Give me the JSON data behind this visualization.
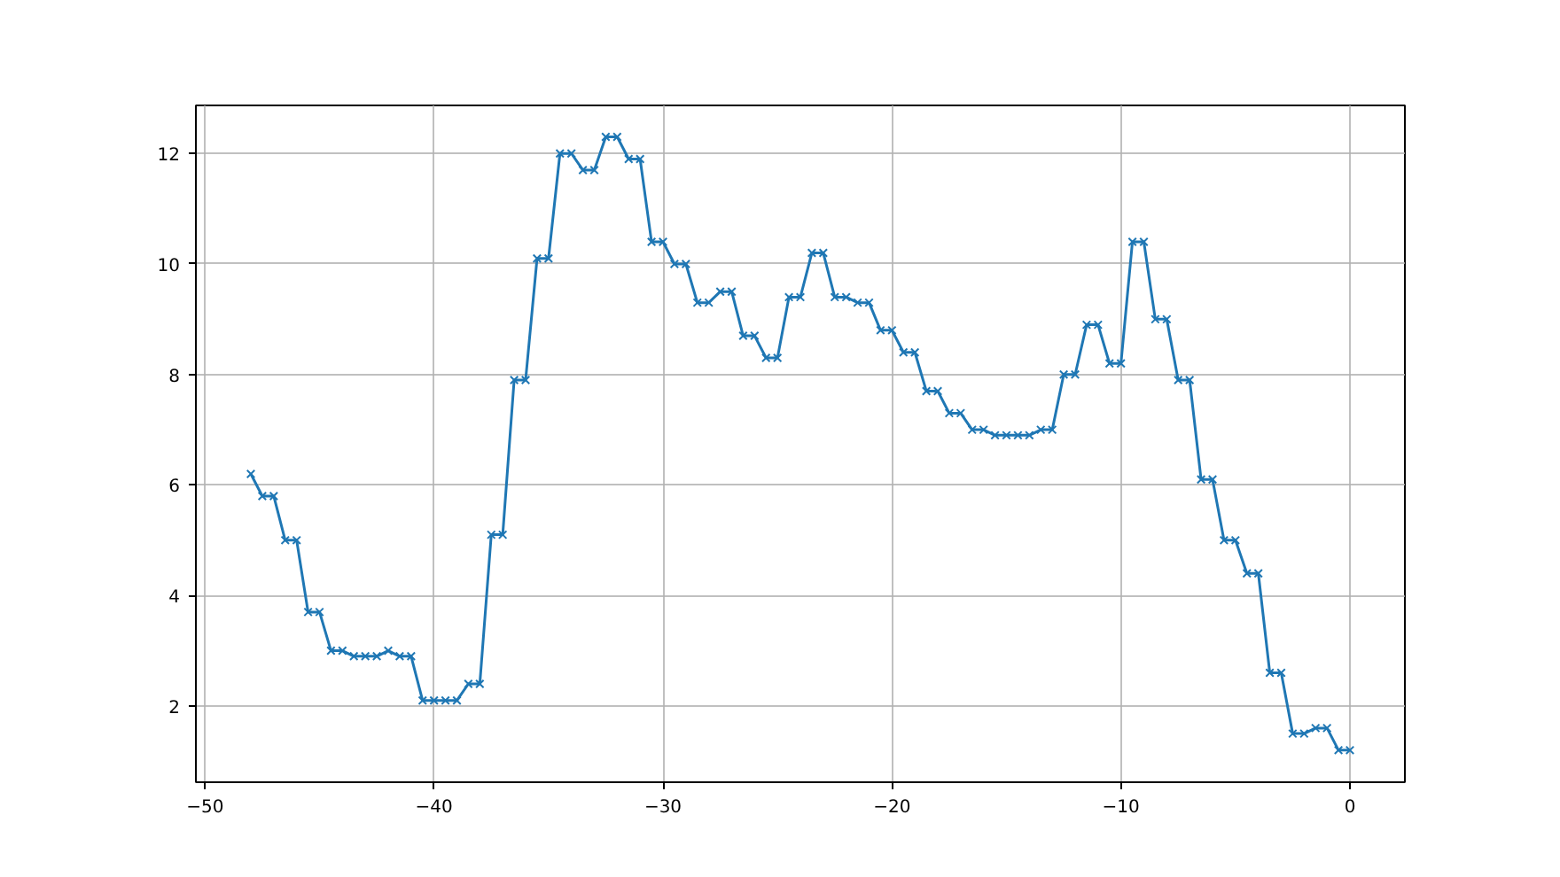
{
  "chart_data": {
    "type": "line",
    "x": [
      -48,
      -47.5,
      -47,
      -46.5,
      -46,
      -45.5,
      -45,
      -44.5,
      -44,
      -43.5,
      -43,
      -42.5,
      -42,
      -41.5,
      -41,
      -40.5,
      -40,
      -39.5,
      -39,
      -38.5,
      -38,
      -37.5,
      -37,
      -36.5,
      -36,
      -35.5,
      -35,
      -34.5,
      -34,
      -33.5,
      -33,
      -32.5,
      -32,
      -31.5,
      -31,
      -30.5,
      -30,
      -29.5,
      -29,
      -28.5,
      -28,
      -27.5,
      -27,
      -26.5,
      -26,
      -25.5,
      -25,
      -24.5,
      -24,
      -23.5,
      -23,
      -22.5,
      -22,
      -21.5,
      -21,
      -20.5,
      -20,
      -19.5,
      -19,
      -18.5,
      -18,
      -17.5,
      -17,
      -16.5,
      -16,
      -15.5,
      -15,
      -14.5,
      -14,
      -13.5,
      -13,
      -12.5,
      -12,
      -11.5,
      -11,
      -10.5,
      -10,
      -9.5,
      -9,
      -8.5,
      -8,
      -7.5,
      -7,
      -6.5,
      -6,
      -5.5,
      -5,
      -4.5,
      -4,
      -3.5,
      -3,
      -2.5,
      -2,
      -1.5,
      -1,
      -0.5,
      0
    ],
    "series": [
      {
        "color": "#1f77b4",
        "values": [
          6.2,
          5.8,
          5.8,
          5.0,
          5.0,
          3.7,
          3.7,
          3.0,
          3.0,
          2.9,
          2.9,
          2.9,
          3.0,
          2.9,
          2.9,
          2.1,
          2.1,
          2.1,
          2.1,
          2.4,
          2.4,
          5.1,
          5.1,
          7.9,
          7.9,
          10.1,
          10.1,
          12.0,
          12.0,
          11.7,
          11.7,
          12.3,
          12.3,
          11.9,
          11.9,
          10.4,
          10.4,
          10.0,
          10.0,
          9.3,
          9.3,
          9.5,
          9.5,
          8.7,
          8.7,
          8.3,
          8.3,
          9.4,
          9.4,
          10.2,
          10.2,
          9.4,
          9.4,
          9.3,
          9.3,
          8.8,
          8.8,
          8.4,
          8.4,
          7.7,
          7.7,
          7.3,
          7.3,
          7.0,
          7.0,
          6.9,
          6.9,
          6.9,
          6.9,
          7.0,
          7.0,
          8.0,
          8.0,
          8.9,
          8.9,
          8.2,
          8.2,
          10.4,
          10.4,
          9.0,
          9.0,
          7.9,
          7.9,
          6.1,
          6.1,
          5.0,
          5.0,
          4.4,
          4.4,
          2.6,
          2.6,
          1.5,
          1.5,
          1.6,
          1.6,
          1.2,
          1.2
        ]
      }
    ],
    "xlim": [
      -50.4,
      2.4
    ],
    "ylim": [
      0.62,
      12.87
    ],
    "xticks": [
      -50,
      -40,
      -30,
      -20,
      -10,
      0
    ],
    "yticks": [
      2,
      4,
      6,
      8,
      10,
      12
    ],
    "grid": true,
    "marker": "cross",
    "line_style": "solid"
  }
}
